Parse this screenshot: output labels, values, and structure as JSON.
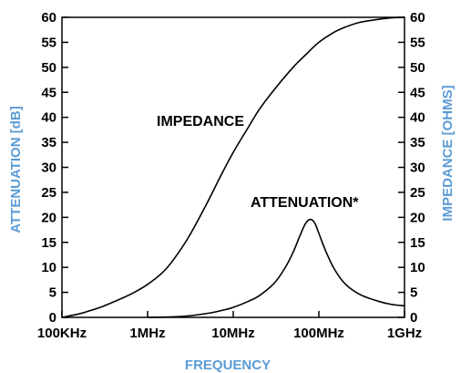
{
  "chart_data": {
    "type": "line",
    "xlabel": "FREQUENCY",
    "ylabel_left": "ATTENUATION [dB]",
    "ylabel_right": "IMPEDANCE [OHMS]",
    "x_scale": "log",
    "x_ticks": [
      {
        "value": 100000,
        "label": "100KHz"
      },
      {
        "value": 1000000,
        "label": "1MHz"
      },
      {
        "value": 10000000,
        "label": "10MHz"
      },
      {
        "value": 100000000,
        "label": "100MHz"
      },
      {
        "value": 1000000000,
        "label": "1GHz"
      }
    ],
    "xlim": [
      100000,
      1000000000
    ],
    "ylim_left": [
      0,
      60
    ],
    "ylim_right": [
      0,
      60
    ],
    "y_ticks_left": [
      "0",
      "5",
      "10",
      "15",
      "20",
      "25",
      "30",
      "35",
      "40",
      "45",
      "50",
      "55",
      "60"
    ],
    "y_ticks_right": [
      "0",
      "5",
      "10",
      "15",
      "20",
      "25",
      "30",
      "35",
      "40",
      "45",
      "50",
      "55",
      "60"
    ],
    "grid": false,
    "colors": {
      "axis_title": "#5b9bd5",
      "line": "#000000"
    },
    "series": [
      {
        "name": "IMPEDANCE",
        "axis": "right",
        "points": [
          [
            100000,
            0
          ],
          [
            150000,
            0.6
          ],
          [
            200000,
            1.2
          ],
          [
            300000,
            2.2
          ],
          [
            500000,
            3.8
          ],
          [
            700000,
            5.0
          ],
          [
            1000000,
            6.6
          ],
          [
            1500000,
            9.0
          ],
          [
            2000000,
            11.5
          ],
          [
            3000000,
            16.0
          ],
          [
            5000000,
            23.0
          ],
          [
            7000000,
            28.0
          ],
          [
            10000000,
            33.0
          ],
          [
            15000000,
            38.0
          ],
          [
            20000000,
            41.5
          ],
          [
            30000000,
            45.5
          ],
          [
            50000000,
            50.0
          ],
          [
            70000000,
            52.5
          ],
          [
            100000000,
            55.0
          ],
          [
            150000000,
            57.0
          ],
          [
            200000000,
            58.0
          ],
          [
            300000000,
            59.0
          ],
          [
            500000000,
            59.6
          ],
          [
            700000000,
            59.9
          ],
          [
            1000000000,
            60.0
          ]
        ]
      },
      {
        "name": "ATTENUATION*",
        "axis": "left",
        "points": [
          [
            1000000,
            0
          ],
          [
            2000000,
            0.1
          ],
          [
            3000000,
            0.3
          ],
          [
            5000000,
            0.8
          ],
          [
            7000000,
            1.3
          ],
          [
            10000000,
            2.0
          ],
          [
            15000000,
            3.2
          ],
          [
            20000000,
            4.3
          ],
          [
            30000000,
            6.8
          ],
          [
            40000000,
            9.8
          ],
          [
            50000000,
            13.0
          ],
          [
            60000000,
            16.3
          ],
          [
            70000000,
            18.8
          ],
          [
            80000000,
            19.6
          ],
          [
            90000000,
            18.8
          ],
          [
            100000000,
            16.8
          ],
          [
            120000000,
            13.3
          ],
          [
            150000000,
            9.8
          ],
          [
            200000000,
            6.8
          ],
          [
            300000000,
            4.6
          ],
          [
            500000000,
            3.2
          ],
          [
            700000000,
            2.6
          ],
          [
            1000000000,
            2.3
          ]
        ]
      }
    ],
    "annotations": [
      {
        "text": "IMPEDANCE",
        "series": "IMPEDANCE"
      },
      {
        "text": "ATTENUATION*",
        "series": "ATTENUATION*"
      }
    ]
  }
}
